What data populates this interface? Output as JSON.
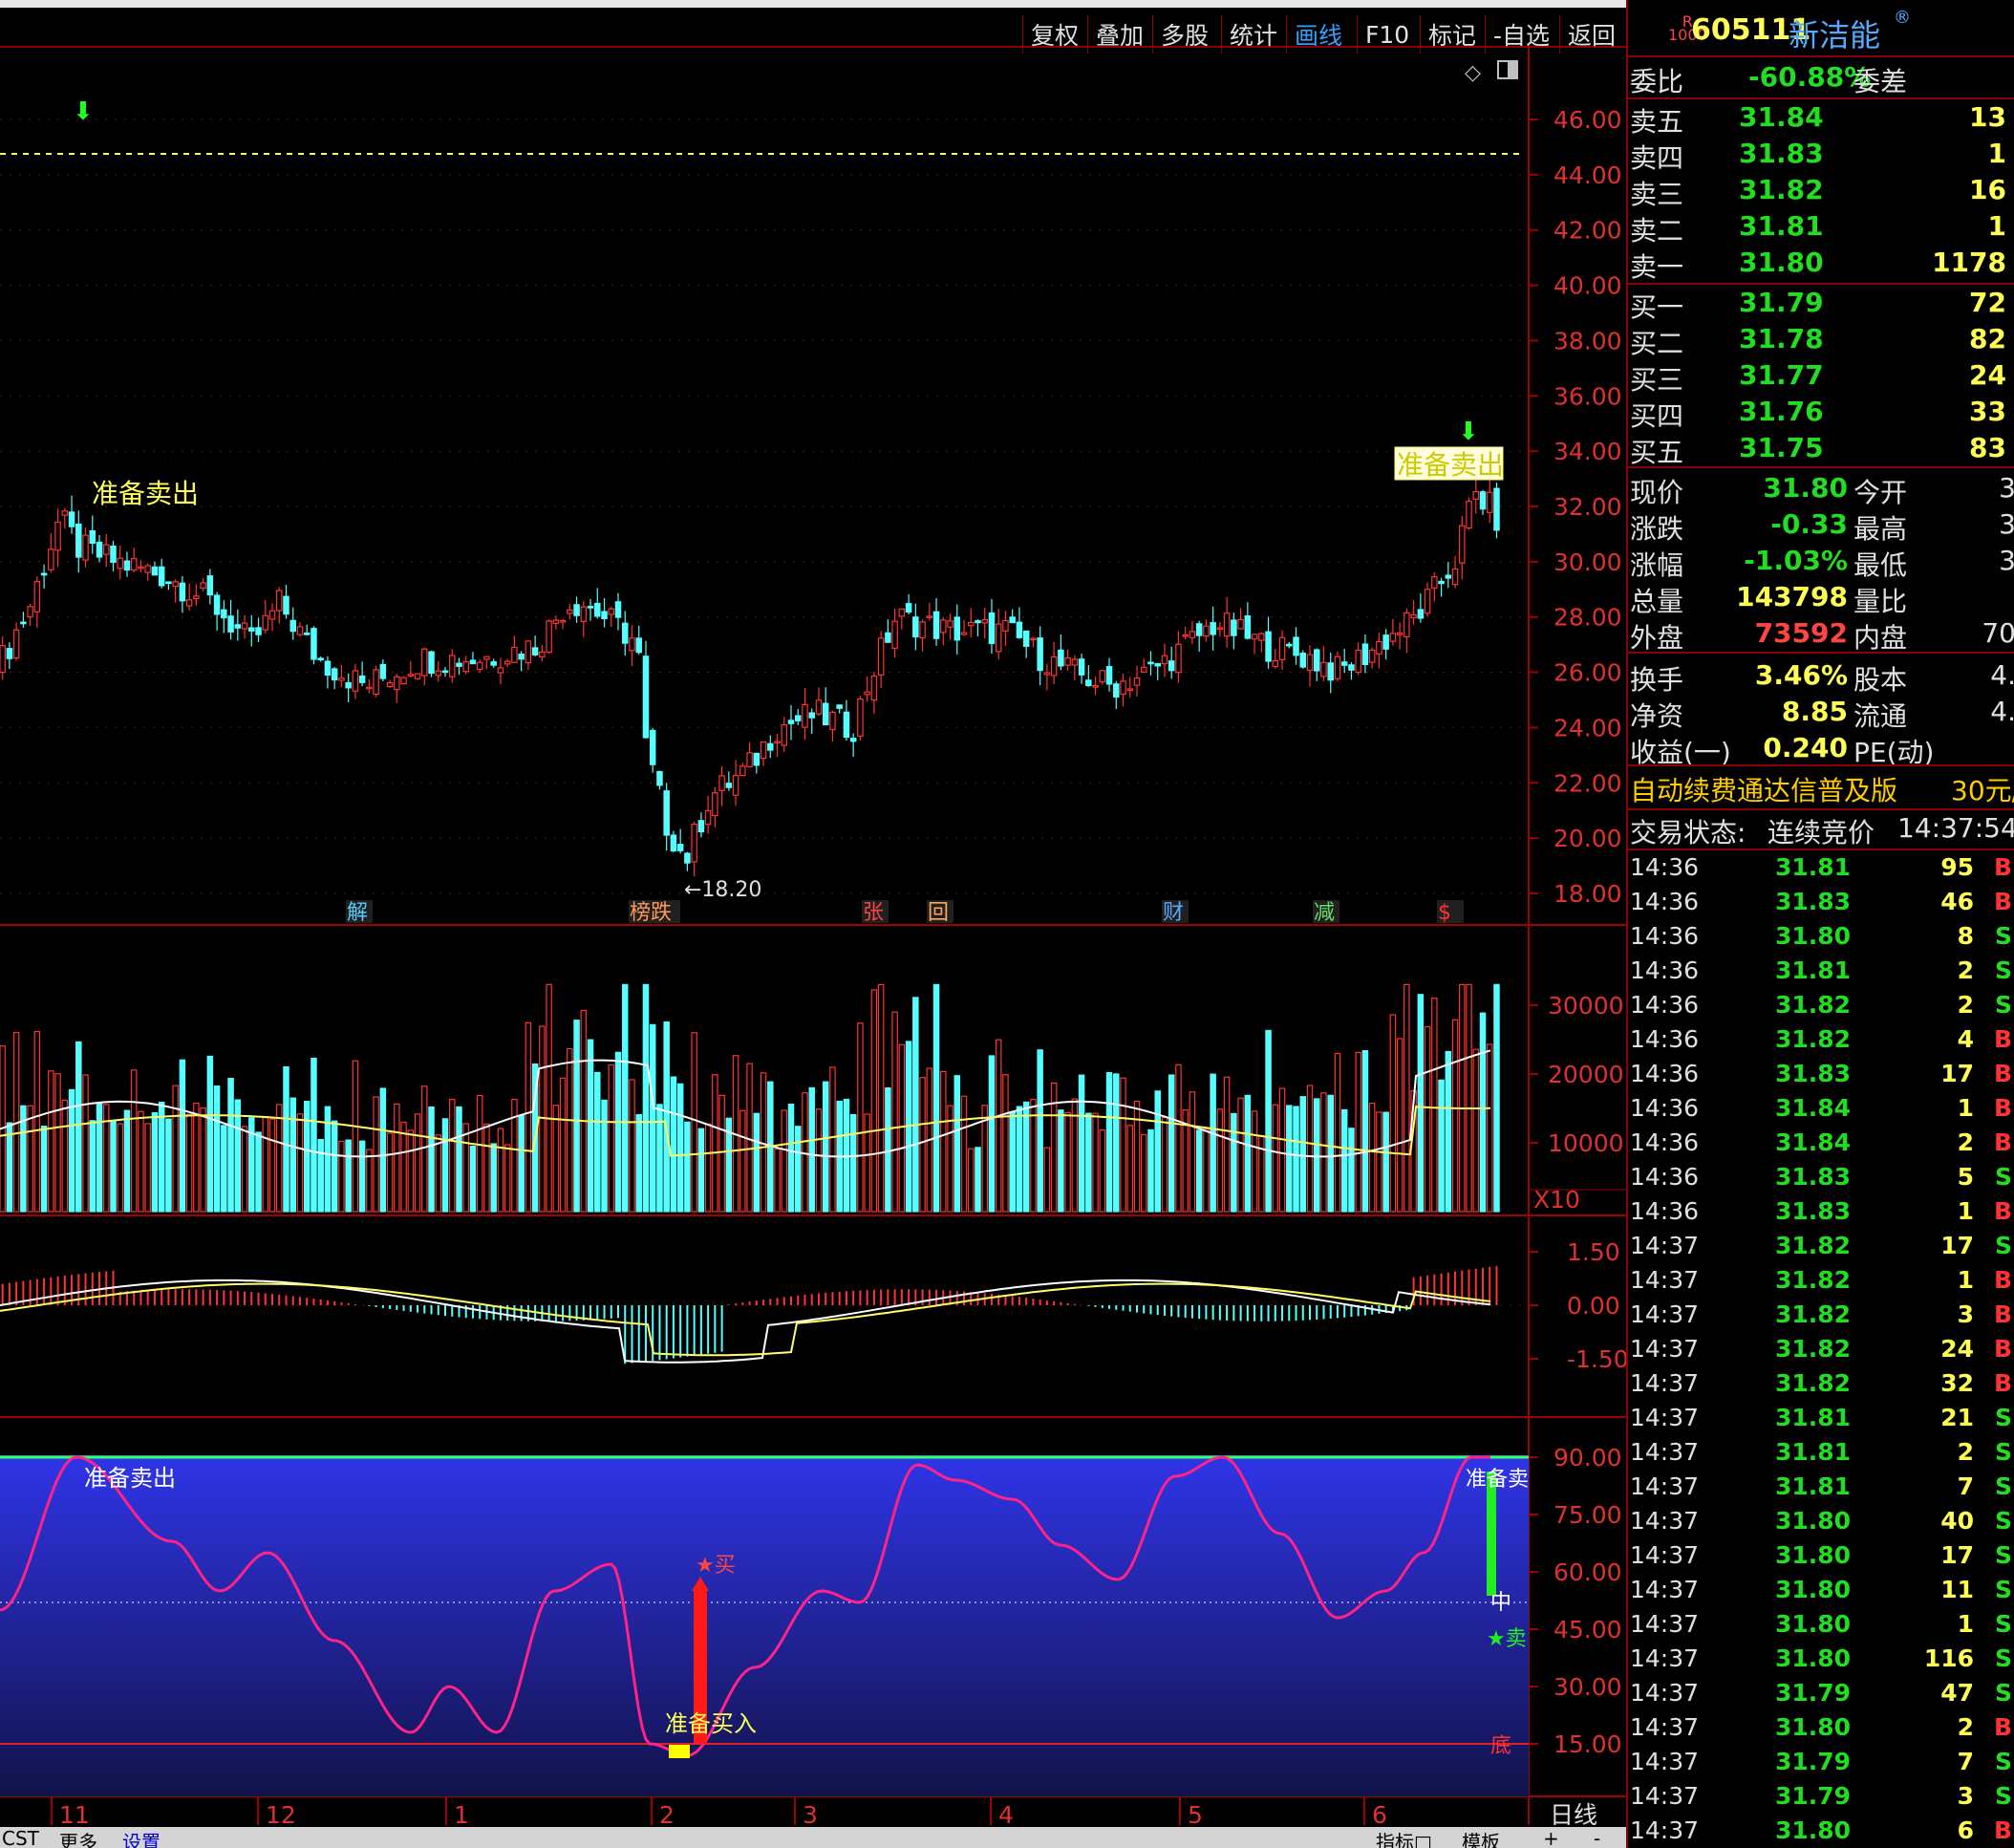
{
  "toolbar": {
    "buttons": [
      "复权",
      "叠加",
      "多股",
      "统计",
      "画线",
      "F10",
      "标记",
      "-自选",
      "返回"
    ],
    "active": "画线"
  },
  "stock": {
    "badge_top": "R",
    "badge_bottom": "1000",
    "code": "605111",
    "name": "新洁能"
  },
  "weibi": {
    "label": "委比",
    "value": "-60.88%",
    "diff_label": "委差"
  },
  "asks": [
    {
      "label": "卖五",
      "price": "31.84",
      "vol": "13"
    },
    {
      "label": "卖四",
      "price": "31.83",
      "vol": "1"
    },
    {
      "label": "卖三",
      "price": "31.82",
      "vol": "16"
    },
    {
      "label": "卖二",
      "price": "31.81",
      "vol": "1"
    },
    {
      "label": "卖一",
      "price": "31.80",
      "vol": "1178"
    }
  ],
  "bids": [
    {
      "label": "买一",
      "price": "31.79",
      "vol": "72"
    },
    {
      "label": "买二",
      "price": "31.78",
      "vol": "82"
    },
    {
      "label": "买三",
      "price": "31.77",
      "vol": "24"
    },
    {
      "label": "买四",
      "price": "31.76",
      "vol": "33"
    },
    {
      "label": "买五",
      "price": "31.75",
      "vol": "83"
    }
  ],
  "quote": [
    {
      "l1": "现价",
      "v1": "31.80",
      "l2": "今开",
      "v2": "3"
    },
    {
      "l1": "涨跌",
      "v1": "-0.33",
      "l2": "最高",
      "v2": "3"
    },
    {
      "l1": "涨幅",
      "v1": "-1.03%",
      "l2": "最低",
      "v2": "3"
    },
    {
      "l1": "总量",
      "v1": "143798",
      "l2": "量比",
      "v2": ""
    },
    {
      "l1": "外盘",
      "v1": "73592",
      "l2": "内盘",
      "v2": "70"
    }
  ],
  "fin": [
    {
      "l1": "换手",
      "v1": "3.46%",
      "l2": "股本",
      "v2": "4."
    },
    {
      "l1": "净资",
      "v1": "8.85",
      "l2": "流通",
      "v2": "4."
    },
    {
      "l1": "收益(一)",
      "v1": "0.240",
      "l2": "PE(动)",
      "v2": ""
    }
  ],
  "ad": {
    "text": "自动续费通达信普及版",
    "price": "30元/"
  },
  "trade_status": {
    "label": "交易状态:",
    "state": "连续竞价",
    "time": "14:37:54"
  },
  "ticks": [
    [
      "14:36",
      "31.81",
      "95",
      "B"
    ],
    [
      "14:36",
      "31.83",
      "46",
      "B"
    ],
    [
      "14:36",
      "31.80",
      "8",
      "S"
    ],
    [
      "14:36",
      "31.81",
      "2",
      "S"
    ],
    [
      "14:36",
      "31.82",
      "2",
      "S"
    ],
    [
      "14:36",
      "31.82",
      "4",
      "B"
    ],
    [
      "14:36",
      "31.83",
      "17",
      "B"
    ],
    [
      "14:36",
      "31.84",
      "1",
      "B"
    ],
    [
      "14:36",
      "31.84",
      "2",
      "B"
    ],
    [
      "14:36",
      "31.83",
      "5",
      "S"
    ],
    [
      "14:36",
      "31.83",
      "1",
      "B"
    ],
    [
      "14:37",
      "31.82",
      "17",
      "S"
    ],
    [
      "14:37",
      "31.82",
      "1",
      "B"
    ],
    [
      "14:37",
      "31.82",
      "3",
      "B"
    ],
    [
      "14:37",
      "31.82",
      "24",
      "B"
    ],
    [
      "14:37",
      "31.82",
      "32",
      "B"
    ],
    [
      "14:37",
      "31.81",
      "21",
      "S"
    ],
    [
      "14:37",
      "31.81",
      "2",
      "S"
    ],
    [
      "14:37",
      "31.81",
      "7",
      "S"
    ],
    [
      "14:37",
      "31.80",
      "40",
      "S"
    ],
    [
      "14:37",
      "31.80",
      "17",
      "S"
    ],
    [
      "14:37",
      "31.80",
      "11",
      "S"
    ],
    [
      "14:37",
      "31.80",
      "1",
      "S"
    ],
    [
      "14:37",
      "31.80",
      "116",
      "S"
    ],
    [
      "14:37",
      "31.79",
      "47",
      "S"
    ],
    [
      "14:37",
      "31.80",
      "2",
      "B"
    ],
    [
      "14:37",
      "31.79",
      "7",
      "S"
    ],
    [
      "14:37",
      "31.79",
      "3",
      "S"
    ],
    [
      "14:37",
      "31.80",
      "6",
      "B"
    ]
  ],
  "price_axis": [
    "46.00",
    "44.00",
    "42.00",
    "40.00",
    "38.00",
    "36.00",
    "34.00",
    "32.00",
    "30.00",
    "28.00",
    "26.00",
    "24.00",
    "22.00",
    "20.00",
    "18.00"
  ],
  "vol_axis": [
    "30000",
    "20000",
    "10000"
  ],
  "vol_unit": "X10",
  "macd_axis": [
    "1.50",
    "0.00",
    "-1.50"
  ],
  "osc_axis": [
    "90.00",
    "75.00",
    "60.00",
    "45.00",
    "30.00",
    "15.00"
  ],
  "months": [
    "11",
    "12",
    "1",
    "2",
    "3",
    "4",
    "5",
    "6"
  ],
  "period": "日线",
  "annotations": {
    "sell1": "准备卖出",
    "sell2": "准备卖出",
    "low": "←18.20",
    "osc_sell": "准备卖出",
    "osc_buy": "准备买入",
    "osc_buy_star": "★买",
    "osc_mid": "中",
    "osc_sell2": "★卖",
    "osc_bottom": "底",
    "osc_right_sell": "准备卖"
  },
  "markers": [
    "解",
    "榜跌",
    "张",
    "回",
    "财",
    "减",
    "$"
  ],
  "bottom": {
    "left": [
      "CST",
      "更多",
      "设置"
    ],
    "right": [
      "指标□",
      "模板",
      "+",
      "-"
    ]
  },
  "colors": {
    "up": "#ff3333",
    "down": "#55ffff",
    "ma1": "#ffffff",
    "ma2": "#ffff66",
    "osc_line": "#ff2288",
    "ask_price": "#22dd22",
    "bid_price": "#22dd22"
  }
}
